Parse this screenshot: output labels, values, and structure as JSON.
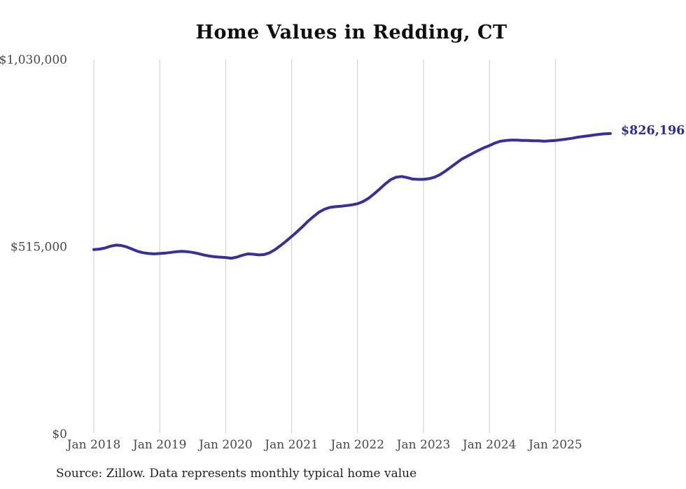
{
  "chart_data": {
    "type": "line",
    "title": "Home Values in Redding, CT",
    "source_note": "Source: Zillow. Data represents monthly typical home value",
    "series_name": "Monthly typical home value",
    "end_label": "$826,196",
    "latest_value": 826196,
    "line_color": "#362fa1",
    "end_label_color": "#2f2a96",
    "grid_color": "#cccccc",
    "grid": "vertical-only",
    "legend": "none",
    "ylim": [
      0,
      1030000
    ],
    "y_tick_values": [
      0,
      515000,
      1030000
    ],
    "y_tick_labels": [
      "$0",
      "$515,000",
      "$1,030,000"
    ],
    "x_tick_labels": [
      "Jan 2018",
      "Jan 2019",
      "Jan 2020",
      "Jan 2021",
      "Jan 2022",
      "Jan 2023",
      "Jan 2024",
      "Jan 2025"
    ],
    "dates": [
      "2018-01",
      "2018-02",
      "2018-03",
      "2018-04",
      "2018-05",
      "2018-06",
      "2018-07",
      "2018-08",
      "2018-09",
      "2018-10",
      "2018-11",
      "2018-12",
      "2019-01",
      "2019-02",
      "2019-03",
      "2019-04",
      "2019-05",
      "2019-06",
      "2019-07",
      "2019-08",
      "2019-09",
      "2019-10",
      "2019-11",
      "2019-12",
      "2020-01",
      "2020-02",
      "2020-03",
      "2020-04",
      "2020-05",
      "2020-06",
      "2020-07",
      "2020-08",
      "2020-09",
      "2020-10",
      "2020-11",
      "2020-12",
      "2021-01",
      "2021-02",
      "2021-03",
      "2021-04",
      "2021-05",
      "2021-06",
      "2021-07",
      "2021-08",
      "2021-09",
      "2021-10",
      "2021-11",
      "2021-12",
      "2022-01",
      "2022-02",
      "2022-03",
      "2022-04",
      "2022-05",
      "2022-06",
      "2022-07",
      "2022-08",
      "2022-09",
      "2022-10",
      "2022-11",
      "2022-12",
      "2023-01",
      "2023-02",
      "2023-03",
      "2023-04",
      "2023-05",
      "2023-06",
      "2023-07",
      "2023-08",
      "2023-09",
      "2023-10",
      "2023-11",
      "2023-12",
      "2024-01",
      "2024-02",
      "2024-03",
      "2024-04",
      "2024-05",
      "2024-06",
      "2024-07",
      "2024-08",
      "2024-09",
      "2024-10",
      "2024-11",
      "2024-12",
      "2025-01",
      "2025-02",
      "2025-03",
      "2025-04",
      "2025-05",
      "2025-06",
      "2025-07",
      "2025-08",
      "2025-09",
      "2025-10",
      "2025-11"
    ],
    "values": [
      507000,
      508000,
      511000,
      516000,
      519000,
      518000,
      514000,
      508000,
      502000,
      498000,
      496000,
      495000,
      496000,
      497000,
      499000,
      501000,
      502000,
      501000,
      499000,
      496000,
      492000,
      489000,
      487000,
      486000,
      485000,
      483000,
      486000,
      491000,
      495000,
      494000,
      492000,
      493000,
      498000,
      507000,
      518000,
      530000,
      543000,
      556000,
      570000,
      585000,
      598000,
      610000,
      618000,
      623000,
      625000,
      626000,
      628000,
      630000,
      633000,
      639000,
      648000,
      660000,
      673000,
      687000,
      699000,
      706000,
      708000,
      705000,
      701000,
      700000,
      700000,
      702000,
      706000,
      713000,
      723000,
      734000,
      745000,
      756000,
      764000,
      772000,
      780000,
      787000,
      793000,
      800000,
      805000,
      807000,
      808000,
      808000,
      807000,
      807000,
      806000,
      806000,
      805000,
      806000,
      807000,
      809000,
      811000,
      813000,
      816000,
      818000,
      820000,
      822000,
      824000,
      825500,
      826196
    ]
  }
}
